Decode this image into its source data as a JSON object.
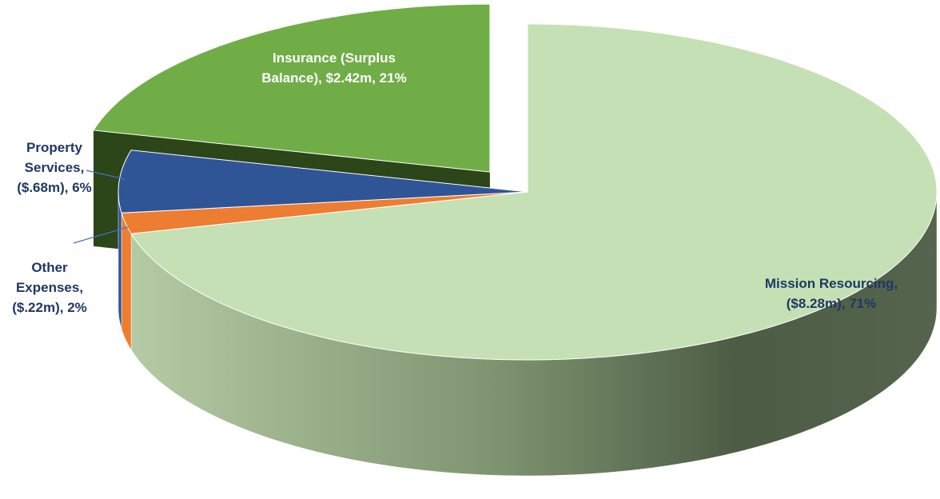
{
  "chart_data": {
    "type": "pie",
    "values": [
      71,
      2,
      6,
      21
    ],
    "value_labels": [
      [
        "Mission Resourcing,",
        "($8.28m), 71%"
      ],
      [
        "Other",
        "Expenses,",
        "($.22m), 2%"
      ],
      [
        "Property",
        "Services,",
        "($.68m), 6%"
      ],
      [
        "Insurance (Surplus",
        "Balance),  $2.42m, 21%"
      ]
    ],
    "colors": [
      "#c5e0b4",
      "#ed7d31",
      "#2f5597",
      "#70ad47"
    ]
  }
}
